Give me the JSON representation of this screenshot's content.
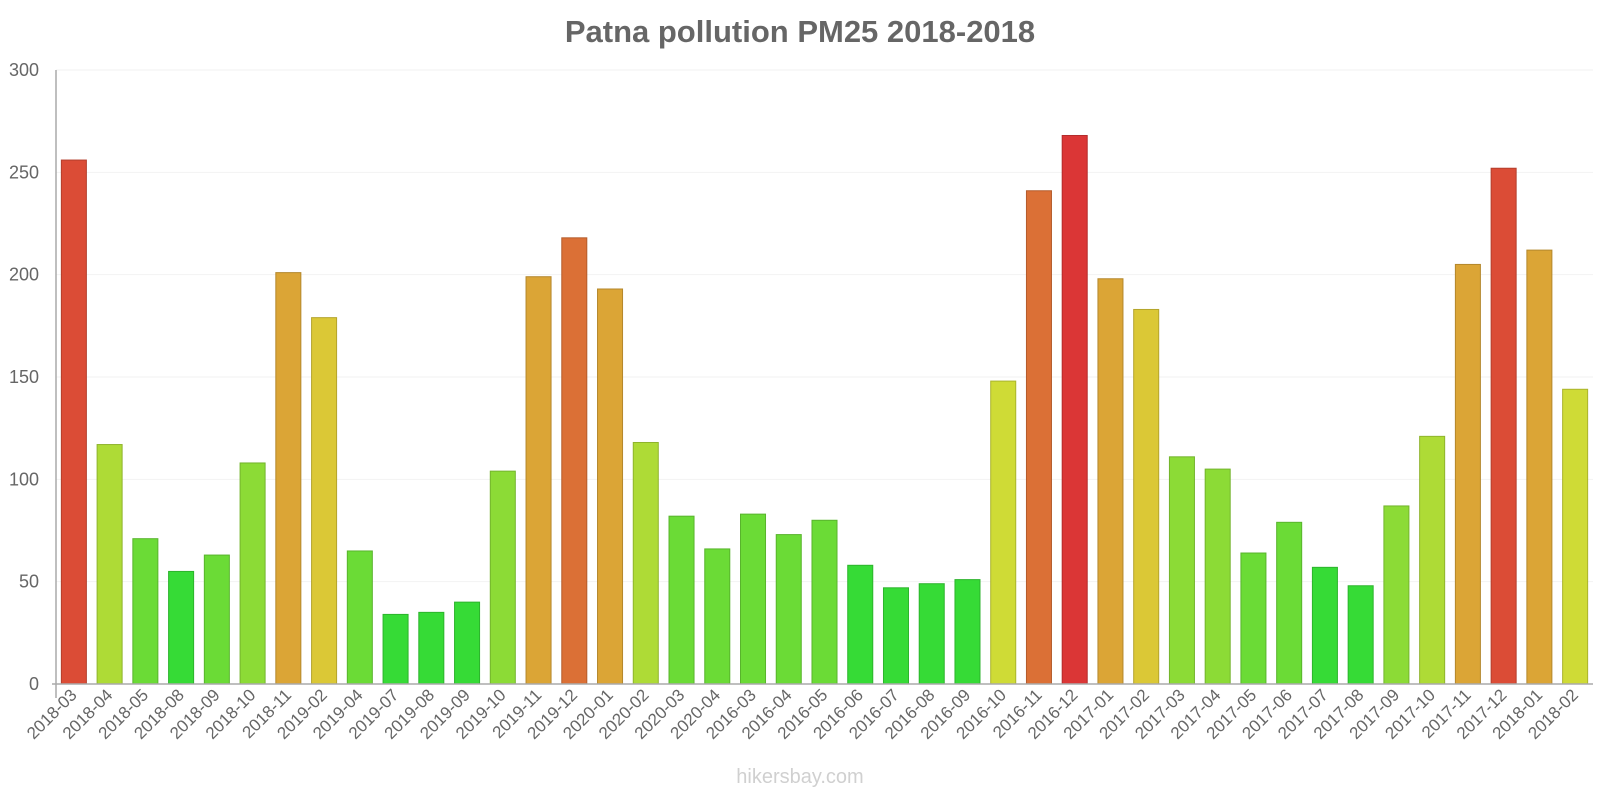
{
  "chart_data": {
    "type": "bar",
    "title": "Patna pollution PM25 2018-2018",
    "xlabel": "",
    "ylabel": "",
    "ylim": [
      0,
      300
    ],
    "yticks": [
      0,
      50,
      100,
      150,
      200,
      250,
      300
    ],
    "grid": true,
    "categories": [
      "2018-03",
      "2018-04",
      "2018-05",
      "2018-08",
      "2018-09",
      "2018-10",
      "2018-11",
      "2019-02",
      "2019-04",
      "2019-07",
      "2019-08",
      "2019-09",
      "2019-10",
      "2019-11",
      "2019-12",
      "2020-01",
      "2020-02",
      "2020-03",
      "2020-04",
      "2016-03",
      "2016-04",
      "2016-05",
      "2016-06",
      "2016-07",
      "2016-08",
      "2016-09",
      "2016-10",
      "2016-11",
      "2016-12",
      "2017-01",
      "2017-02",
      "2017-03",
      "2017-04",
      "2017-05",
      "2017-06",
      "2017-07",
      "2017-08",
      "2017-09",
      "2017-10",
      "2017-11",
      "2017-12",
      "2018-01",
      "2018-02"
    ],
    "values": [
      256,
      117,
      71,
      55,
      63,
      108,
      201,
      179,
      65,
      34,
      35,
      40,
      104,
      199,
      218,
      193,
      118,
      82,
      66,
      83,
      73,
      80,
      58,
      47,
      49,
      51,
      148,
      241,
      268,
      198,
      183,
      111,
      105,
      64,
      79,
      57,
      48,
      87,
      121,
      205,
      252,
      212,
      144
    ],
    "colors": [
      "#db4c36",
      "#aedb36",
      "#6bdb36",
      "#36db36",
      "#6bdb36",
      "#8cdb36",
      "#dba536",
      "#dbc836",
      "#6bdb36",
      "#36db36",
      "#36db36",
      "#36db36",
      "#8cdb36",
      "#dba536",
      "#db7036",
      "#dba536",
      "#aedb36",
      "#6bdb36",
      "#6bdb36",
      "#6bdb36",
      "#6bdb36",
      "#6bdb36",
      "#36db36",
      "#36db36",
      "#36db36",
      "#36db36",
      "#cfdb36",
      "#db7036",
      "#db3636",
      "#dba536",
      "#dbc836",
      "#8cdb36",
      "#8cdb36",
      "#6bdb36",
      "#6bdb36",
      "#36db36",
      "#36db36",
      "#8cdb36",
      "#aedb36",
      "#dba536",
      "#db4c36",
      "#dba536",
      "#cfdb36"
    ]
  },
  "watermark": "hikersbay.com"
}
